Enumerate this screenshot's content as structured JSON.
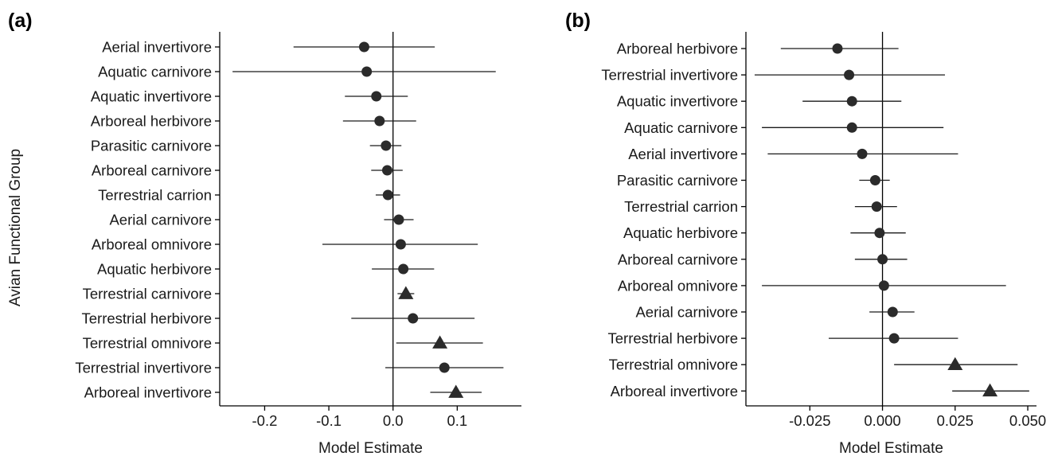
{
  "ylabel": "Avian Functional Group",
  "chart_data": [
    {
      "type": "scatter",
      "panel_label": "(a)",
      "xlabel": "Model Estimate",
      "ylabel": "Avian Functional Group",
      "xlim": [
        -0.27,
        0.2
      ],
      "xticks": [
        -0.2,
        -0.1,
        0.0,
        0.1
      ],
      "xtick_labels": [
        "-0.2",
        "-0.1",
        "0.0",
        "0.1"
      ],
      "reference_line": 0,
      "points": [
        {
          "category": "Aerial invertivore",
          "estimate": -0.045,
          "lower": -0.155,
          "upper": 0.065,
          "marker": "circle"
        },
        {
          "category": "Aquatic carnivore",
          "estimate": -0.041,
          "lower": -0.25,
          "upper": 0.16,
          "marker": "circle"
        },
        {
          "category": "Aquatic invertivore",
          "estimate": -0.026,
          "lower": -0.075,
          "upper": 0.023,
          "marker": "circle"
        },
        {
          "category": "Arboreal herbivore",
          "estimate": -0.021,
          "lower": -0.078,
          "upper": 0.036,
          "marker": "circle"
        },
        {
          "category": "Parasitic carnivore",
          "estimate": -0.011,
          "lower": -0.036,
          "upper": 0.013,
          "marker": "circle"
        },
        {
          "category": "Arboreal carnivore",
          "estimate": -0.009,
          "lower": -0.034,
          "upper": 0.015,
          "marker": "circle"
        },
        {
          "category": "Terrestrial carrion",
          "estimate": -0.008,
          "lower": -0.027,
          "upper": 0.011,
          "marker": "circle"
        },
        {
          "category": "Aerial carnivore",
          "estimate": 0.009,
          "lower": -0.014,
          "upper": 0.032,
          "marker": "circle"
        },
        {
          "category": "Arboreal omnivore",
          "estimate": 0.012,
          "lower": -0.11,
          "upper": 0.132,
          "marker": "circle"
        },
        {
          "category": "Aquatic herbivore",
          "estimate": 0.016,
          "lower": -0.033,
          "upper": 0.064,
          "marker": "circle"
        },
        {
          "category": "Terrestrial carnivore",
          "estimate": 0.02,
          "lower": 0.007,
          "upper": 0.033,
          "marker": "triangle"
        },
        {
          "category": "Terrestrial herbivore",
          "estimate": 0.031,
          "lower": -0.065,
          "upper": 0.127,
          "marker": "circle"
        },
        {
          "category": "Terrestrial omnivore",
          "estimate": 0.073,
          "lower": 0.005,
          "upper": 0.14,
          "marker": "triangle"
        },
        {
          "category": "Terrestrial invertivore",
          "estimate": 0.08,
          "lower": -0.012,
          "upper": 0.172,
          "marker": "circle"
        },
        {
          "category": "Arboreal invertivore",
          "estimate": 0.098,
          "lower": 0.058,
          "upper": 0.138,
          "marker": "triangle"
        }
      ]
    },
    {
      "type": "scatter",
      "panel_label": "(b)",
      "xlabel": "Model Estimate",
      "ylabel": "",
      "xlim": [
        -0.047,
        0.053
      ],
      "xticks": [
        -0.025,
        0.0,
        0.025,
        0.05
      ],
      "xtick_labels": [
        "-0.025",
        "0.000",
        "0.025",
        "0.050"
      ],
      "reference_line": 0,
      "points": [
        {
          "category": "Arboreal herbivore",
          "estimate": -0.0155,
          "lower": -0.035,
          "upper": 0.0055,
          "marker": "circle"
        },
        {
          "category": "Terrestrial invertivore",
          "estimate": -0.0115,
          "lower": -0.044,
          "upper": 0.0215,
          "marker": "circle"
        },
        {
          "category": "Aquatic invertivore",
          "estimate": -0.0105,
          "lower": -0.0275,
          "upper": 0.0065,
          "marker": "circle"
        },
        {
          "category": "Aquatic carnivore",
          "estimate": -0.0105,
          "lower": -0.0415,
          "upper": 0.021,
          "marker": "circle"
        },
        {
          "category": "Aerial invertivore",
          "estimate": -0.007,
          "lower": -0.0395,
          "upper": 0.026,
          "marker": "circle"
        },
        {
          "category": "Parasitic carnivore",
          "estimate": -0.0025,
          "lower": -0.008,
          "upper": 0.0025,
          "marker": "circle"
        },
        {
          "category": "Terrestrial carrion",
          "estimate": -0.002,
          "lower": -0.0095,
          "upper": 0.005,
          "marker": "circle"
        },
        {
          "category": "Aquatic herbivore",
          "estimate": -0.001,
          "lower": -0.011,
          "upper": 0.008,
          "marker": "circle"
        },
        {
          "category": "Arboreal carnivore",
          "estimate": 0.0,
          "lower": -0.0095,
          "upper": 0.0085,
          "marker": "circle"
        },
        {
          "category": "Arboreal omnivore",
          "estimate": 0.0005,
          "lower": -0.0415,
          "upper": 0.0425,
          "marker": "circle"
        },
        {
          "category": "Aerial carnivore",
          "estimate": 0.0035,
          "lower": -0.0045,
          "upper": 0.011,
          "marker": "circle"
        },
        {
          "category": "Terrestrial herbivore",
          "estimate": 0.004,
          "lower": -0.0185,
          "upper": 0.026,
          "marker": "circle"
        },
        {
          "category": "Terrestrial omnivore",
          "estimate": 0.025,
          "lower": 0.004,
          "upper": 0.0465,
          "marker": "triangle"
        },
        {
          "category": "Arboreal invertivore",
          "estimate": 0.037,
          "lower": 0.024,
          "upper": 0.0505,
          "marker": "triangle"
        }
      ]
    }
  ]
}
